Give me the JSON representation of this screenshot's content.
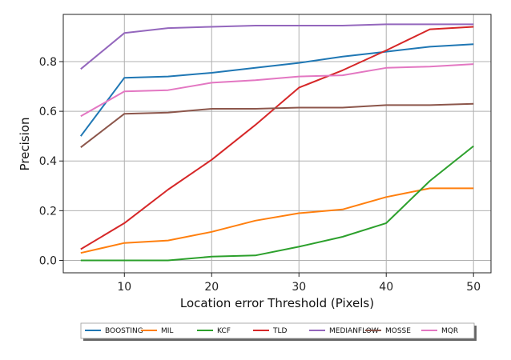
{
  "chart_data": {
    "type": "line",
    "title": "",
    "xlabel": "Location error Threshold (Pixels)",
    "ylabel": "Precision",
    "x": [
      5,
      10,
      15,
      20,
      25,
      30,
      35,
      40,
      45,
      50
    ],
    "xlim": [
      3,
      52
    ],
    "ylim": [
      -0.05,
      0.99
    ],
    "xticks": [
      10,
      20,
      30,
      40,
      50
    ],
    "yticks": [
      0.0,
      0.2,
      0.4,
      0.6,
      0.8
    ],
    "xtick_labels": [
      "10",
      "20",
      "30",
      "40",
      "50"
    ],
    "ytick_labels": [
      "0.0",
      "0.2",
      "0.4",
      "0.6",
      "0.8"
    ],
    "grid": true,
    "legend_position": "bottom-center",
    "series": [
      {
        "name": "BOOSTING",
        "color": "#1f77b4",
        "values": [
          0.5,
          0.735,
          0.74,
          0.755,
          0.775,
          0.795,
          0.82,
          0.84,
          0.86,
          0.87
        ]
      },
      {
        "name": "MIL",
        "color": "#ff7f0e",
        "values": [
          0.03,
          0.07,
          0.08,
          0.115,
          0.16,
          0.19,
          0.205,
          0.255,
          0.29,
          0.29
        ]
      },
      {
        "name": "KCF",
        "color": "#2ca02c",
        "values": [
          0.0,
          0.0,
          0.0,
          0.015,
          0.02,
          0.055,
          0.095,
          0.15,
          0.32,
          0.46
        ]
      },
      {
        "name": "TLD",
        "color": "#d62728",
        "values": [
          0.045,
          0.15,
          0.285,
          0.405,
          0.545,
          0.695,
          0.765,
          0.845,
          0.93,
          0.94
        ]
      },
      {
        "name": "MEDIANFLOW",
        "color": "#9467bd",
        "values": [
          0.77,
          0.915,
          0.935,
          0.94,
          0.945,
          0.945,
          0.945,
          0.95,
          0.95,
          0.95
        ]
      },
      {
        "name": "MOSSE",
        "color": "#8c564b",
        "values": [
          0.455,
          0.59,
          0.595,
          0.61,
          0.61,
          0.615,
          0.615,
          0.625,
          0.625,
          0.63
        ]
      },
      {
        "name": "MQR",
        "color": "#e377c2",
        "values": [
          0.58,
          0.68,
          0.685,
          0.715,
          0.725,
          0.74,
          0.745,
          0.775,
          0.78,
          0.79
        ]
      }
    ]
  }
}
